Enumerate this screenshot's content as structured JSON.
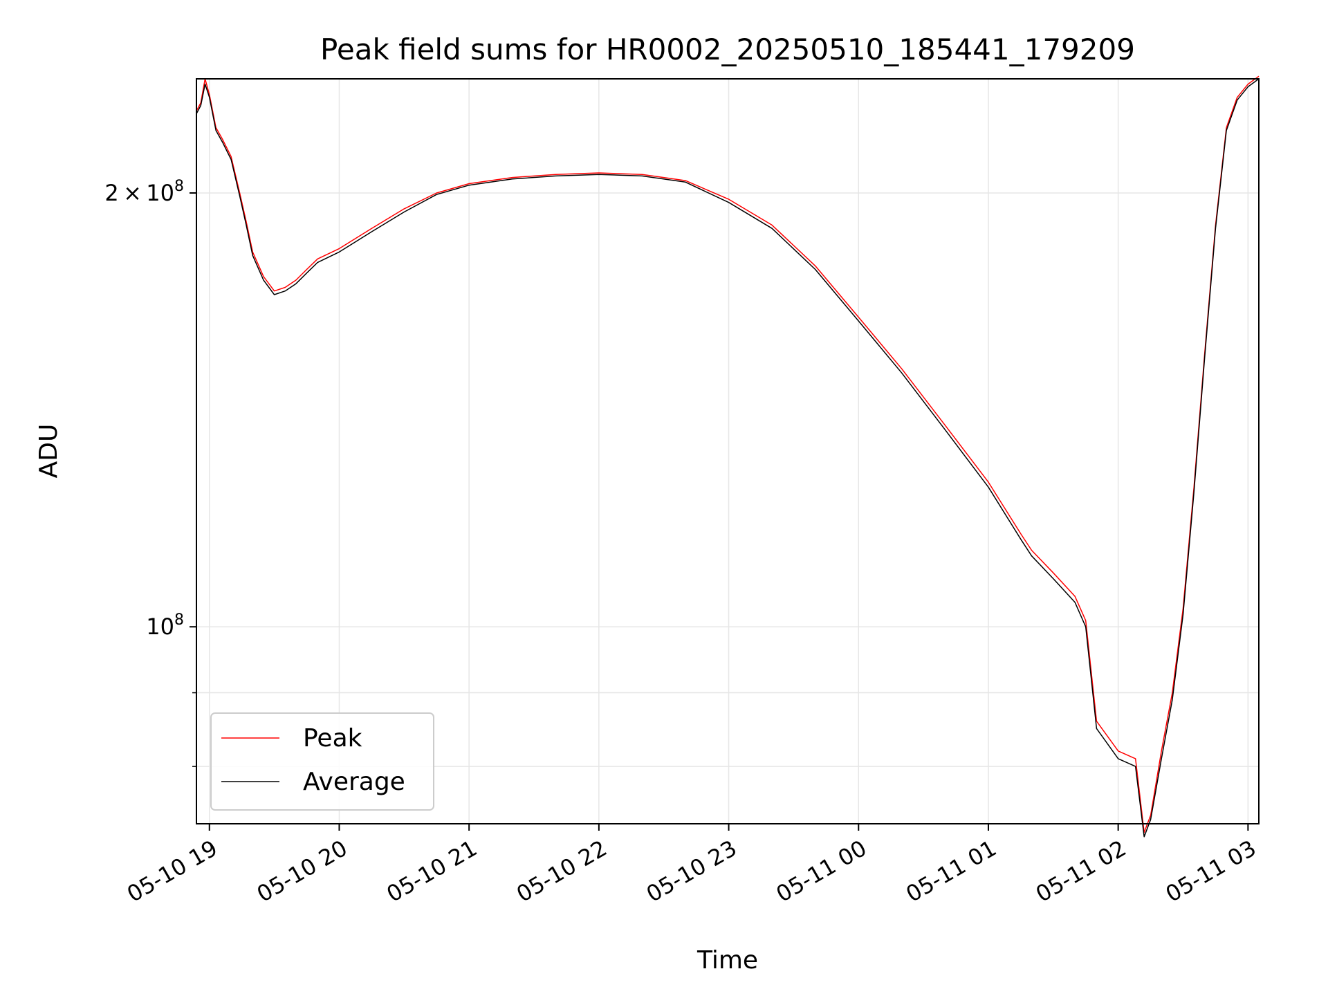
{
  "chart_data": {
    "type": "line",
    "title": "Peak field sums for HR0002_20250510_185441_179209",
    "xlabel": "Time",
    "ylabel": "ADU",
    "y_scale": "log",
    "xlim": [
      "2025-05-10 18:54",
      "2025-05-11 03:05"
    ],
    "ylim": [
      73000000,
      240000000
    ],
    "grid": true,
    "legend_position": "lower-left",
    "x_ticks": [
      "2025-05-10 19:00",
      "2025-05-10 20:00",
      "2025-05-10 21:00",
      "2025-05-10 22:00",
      "2025-05-10 23:00",
      "2025-05-11 00:00",
      "2025-05-11 01:00",
      "2025-05-11 02:00",
      "2025-05-11 03:00"
    ],
    "x_tick_labels": [
      "05-10 19",
      "05-10 20",
      "05-10 21",
      "05-10 22",
      "05-10 23",
      "05-11 00",
      "05-11 01",
      "05-11 02",
      "05-11 03"
    ],
    "y_major_ticks": [
      100000000,
      200000000
    ],
    "y_tick_labels": {
      "base": "10",
      "exponent": "8",
      "coef": "2",
      "times": "×"
    },
    "x": [
      "2025-05-10 18:54",
      "2025-05-10 18:56",
      "2025-05-10 18:58",
      "2025-05-10 19:00",
      "2025-05-10 19:03",
      "2025-05-10 19:06",
      "2025-05-10 19:10",
      "2025-05-10 19:14",
      "2025-05-10 19:17",
      "2025-05-10 19:20",
      "2025-05-10 19:25",
      "2025-05-10 19:30",
      "2025-05-10 19:35",
      "2025-05-10 19:40",
      "2025-05-10 19:45",
      "2025-05-10 19:50",
      "2025-05-10 20:00",
      "2025-05-10 20:15",
      "2025-05-10 20:30",
      "2025-05-10 20:45",
      "2025-05-10 21:00",
      "2025-05-10 21:20",
      "2025-05-10 21:40",
      "2025-05-10 22:00",
      "2025-05-10 22:20",
      "2025-05-10 22:40",
      "2025-05-10 23:00",
      "2025-05-10 23:20",
      "2025-05-10 23:40",
      "2025-05-11 00:00",
      "2025-05-11 00:20",
      "2025-05-11 00:40",
      "2025-05-11 01:00",
      "2025-05-11 01:15",
      "2025-05-11 01:20",
      "2025-05-11 01:30",
      "2025-05-11 01:40",
      "2025-05-11 01:45",
      "2025-05-11 01:50",
      "2025-05-11 02:00",
      "2025-05-11 02:08",
      "2025-05-11 02:12",
      "2025-05-11 02:15",
      "2025-05-11 02:20",
      "2025-05-11 02:25",
      "2025-05-11 02:30",
      "2025-05-11 02:35",
      "2025-05-11 02:40",
      "2025-05-11 02:45",
      "2025-05-11 02:50",
      "2025-05-11 02:55",
      "2025-05-11 03:00",
      "2025-05-11 03:05"
    ],
    "series": [
      {
        "name": "Peak",
        "color": "#ff0000",
        "values": [
          228000000,
          231000000,
          240000000,
          234000000,
          222000000,
          218000000,
          212000000,
          200000000,
          191000000,
          182000000,
          175000000,
          171000000,
          172000000,
          174000000,
          177000000,
          180000000,
          183000000,
          189000000,
          195000000,
          200000000,
          203000000,
          205000000,
          206000000,
          206500000,
          206000000,
          204000000,
          198000000,
          190000000,
          178000000,
          164000000,
          151000000,
          138000000,
          126000000,
          116000000,
          113000000,
          109000000,
          105000000,
          101000000,
          86000000,
          82000000,
          81000000,
          72000000,
          74000000,
          82000000,
          90000000,
          103000000,
          125000000,
          155000000,
          190000000,
          222000000,
          233000000,
          238000000,
          241000000
        ]
      },
      {
        "name": "Average",
        "color": "#000000",
        "values": [
          227000000,
          230000000,
          238000000,
          233000000,
          221000000,
          217000000,
          211000000,
          199000000,
          190000000,
          181000000,
          174000000,
          170000000,
          171000000,
          173000000,
          176000000,
          179000000,
          182000000,
          188000000,
          194000000,
          199500000,
          202500000,
          204500000,
          205500000,
          206000000,
          205500000,
          203500000,
          197000000,
          189000000,
          177000000,
          163000000,
          150000000,
          137000000,
          125000000,
          115000000,
          112000000,
          108000000,
          104000000,
          100000000,
          85000000,
          81000000,
          80000000,
          71500000,
          73500000,
          81000000,
          89000000,
          102000000,
          124000000,
          154000000,
          189000000,
          221000000,
          232000000,
          237000000,
          240000000
        ]
      }
    ]
  }
}
